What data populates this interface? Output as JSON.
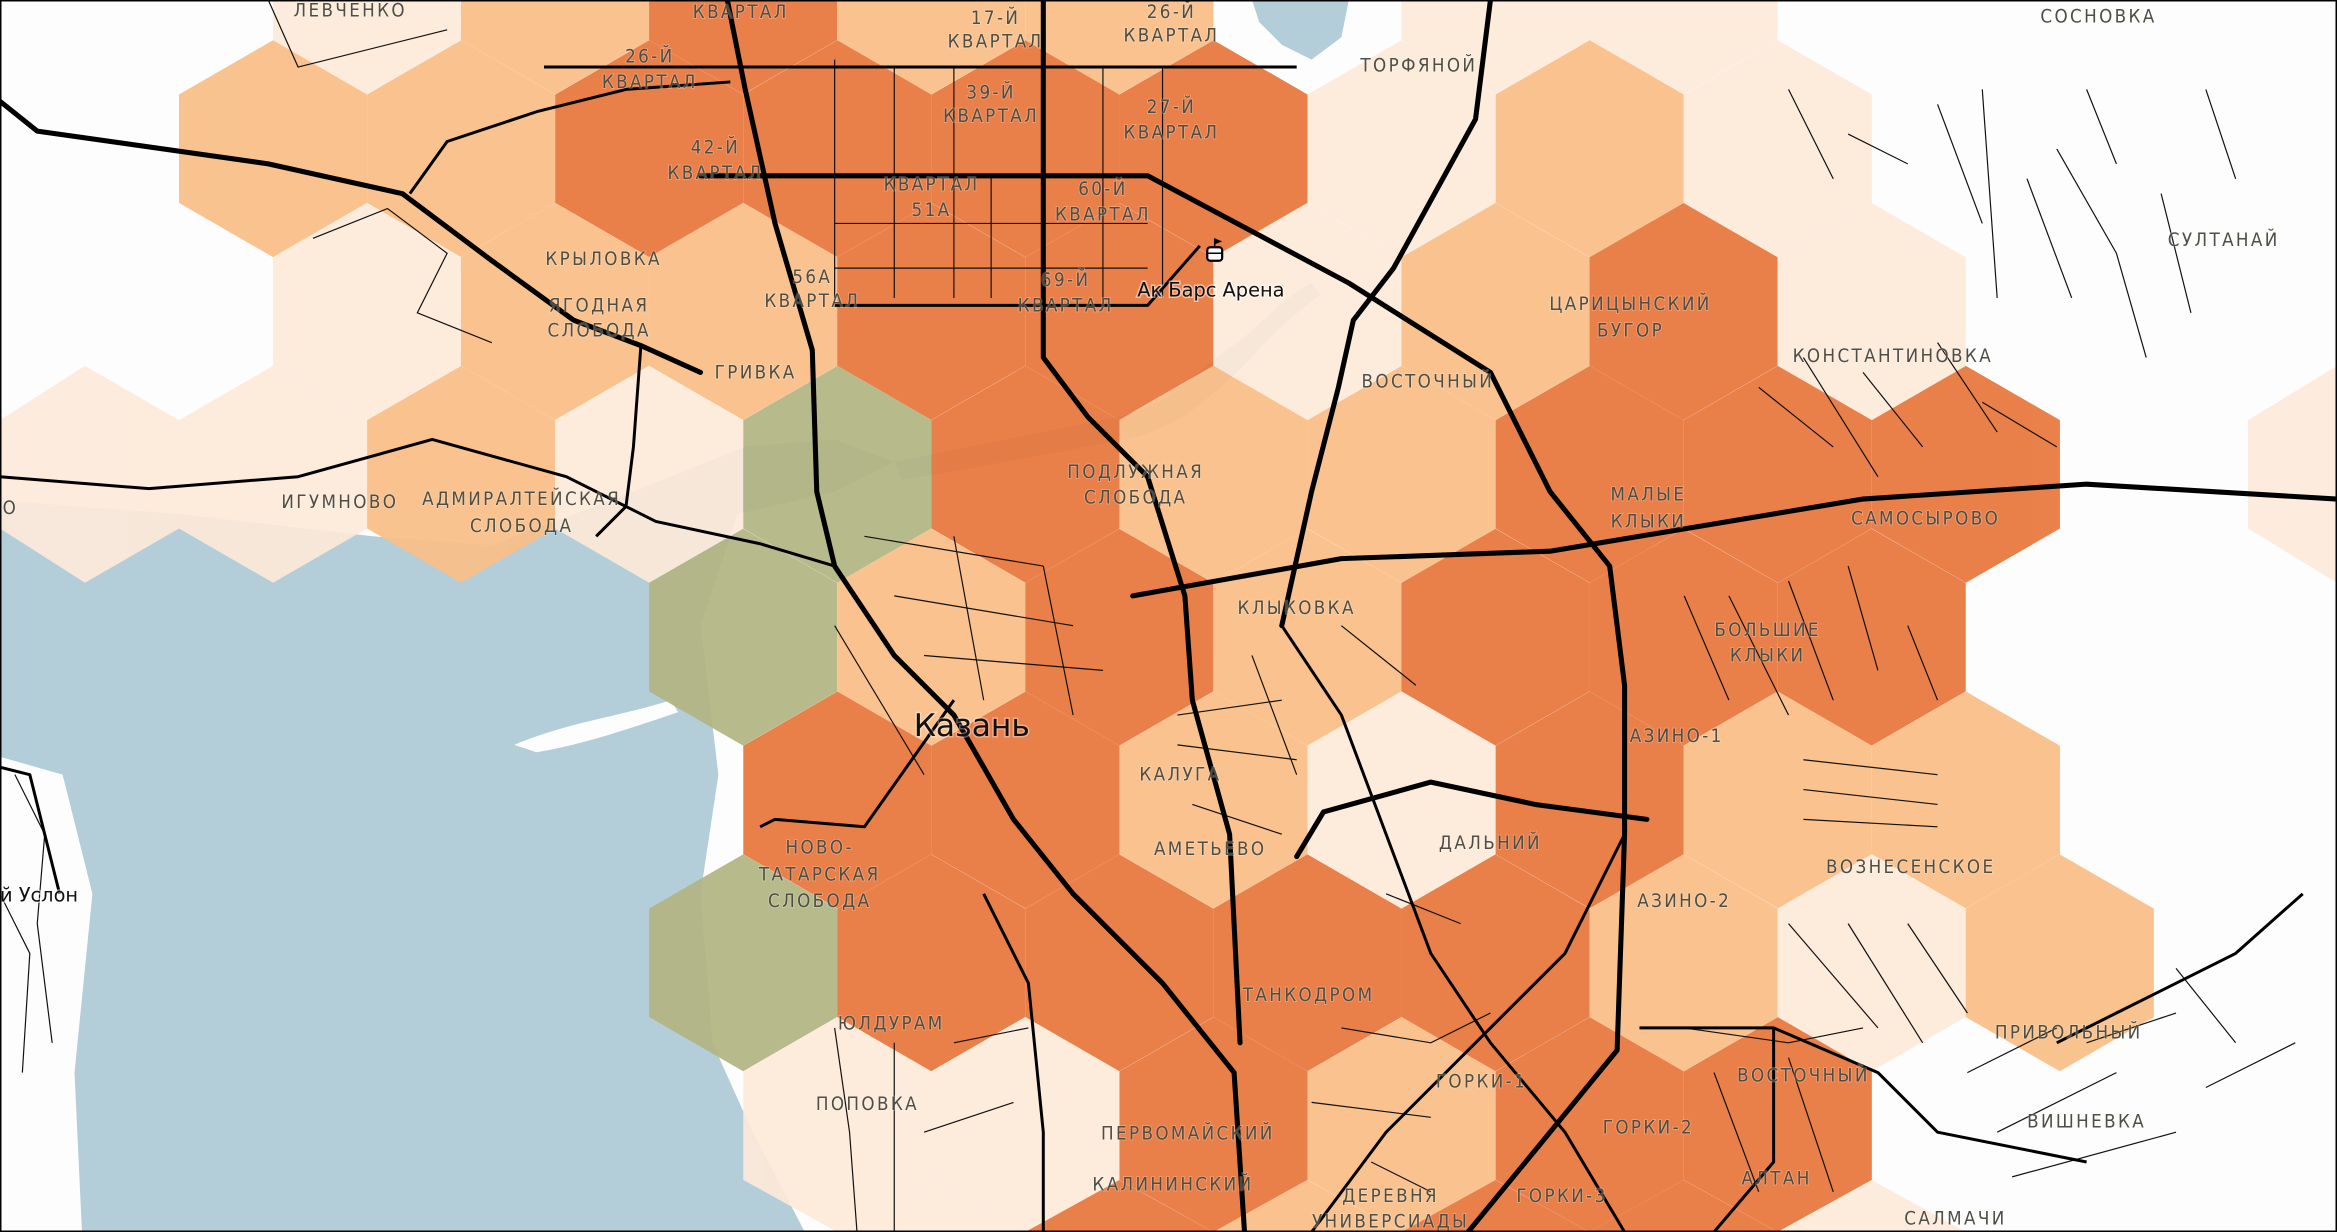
{
  "map": {
    "colors": {
      "land": "#fdfdfd",
      "water": "#b3cdd9",
      "level_1": "#fdeada",
      "level_2": "#f9be86",
      "level_3": "#e8763c",
      "level_g": "#b2b583"
    },
    "hex_levels": [
      [
        "0",
        "1",
        "2",
        "3",
        "2",
        "2",
        "0",
        "1",
        "1",
        "0",
        "0",
        "0"
      ],
      [
        "0",
        "2",
        "2",
        "3",
        "3",
        "3",
        "3",
        "1",
        "2",
        "1",
        "0",
        "0",
        "0"
      ],
      [
        "0",
        "1",
        "2",
        "2",
        "3",
        "3",
        "1",
        "2",
        "3",
        "1",
        "0",
        "0"
      ],
      [
        "1",
        "1",
        "2",
        "1",
        "g",
        "3",
        "2",
        "2",
        "3",
        "3",
        "3",
        "0",
        "1"
      ],
      [
        "0",
        "0",
        "0",
        "g",
        "2",
        "3",
        "2",
        "3",
        "3",
        "3",
        "0",
        "0"
      ],
      [
        "0",
        "0",
        "0",
        "0",
        "3",
        "3",
        "2",
        "1",
        "3",
        "2",
        "2",
        "0",
        "0"
      ],
      [
        "0",
        "0",
        "0",
        "g",
        "3",
        "3",
        "3",
        "3",
        "2",
        "1",
        "2",
        "0"
      ],
      [
        "0",
        "0",
        "0",
        "0",
        "1",
        "1",
        "3",
        "2",
        "3",
        "3",
        "0",
        "0",
        "0"
      ],
      [
        "0",
        "0",
        "0",
        "0",
        "1",
        "3",
        "2",
        "3",
        "3",
        "1",
        "0",
        "0"
      ]
    ],
    "city": "Казань",
    "poi": {
      "ak_bars": "Ак Барс Арена",
      "ak_bars_icon": "stadium-icon"
    },
    "uslon": "й Услон",
    "places": {
      "levchenko": "ЛЕВЧЕНКО",
      "kvartal_top": "КВАРТАЛ",
      "k17_a": "17-Й",
      "k17_b": "КВАРТАЛ",
      "k26e_a": "26-Й",
      "k26e_b": "КВАРТАЛ",
      "sosnovka": "СОСНОВКА",
      "k26w_a": "26-Й",
      "k26w_b": "КВАРТАЛ",
      "k39_a": "39-Й",
      "k39_b": "КВАРТАЛ",
      "k27_a": "27-Й",
      "k27_b": "КВАРТАЛ",
      "torfyanoy": "ТОРФЯНОЙ",
      "k42_a": "42-Й",
      "k42_b": "КВАРТАЛ",
      "k51_a": "КВАРТАЛ",
      "k51_b": "51А",
      "k60_a": "60-Й",
      "k60_b": "КВАРТАЛ",
      "sultanay": "СУЛТАНАЙ",
      "krylovka": "КРЫЛОВКА",
      "yagodnaya_a": "ЯГОДНАЯ",
      "yagodnaya_b": "СЛОБОДА",
      "k56_a": "56А",
      "k56_b": "КВАРТАЛ",
      "k69_a": "69-Й",
      "k69_b": "КВАРТАЛ",
      "tsaritsyno_a": "ЦАРИЦЫНСКИЙ",
      "tsaritsyno_b": "БУГОР",
      "konstantinovka": "КОНСТАНТИНОВКА",
      "grivka": "ГРИВКА",
      "vostochny_n": "ВОСТОЧНЫЙ",
      "o_partial": "О",
      "igumnovo": "ИГУМНОВО",
      "admiralteyskaya_a": "АДМИРАЛТЕЙСКАЯ",
      "admiralteyskaya_b": "СЛОБОДА",
      "podluzhnaya_a": "ПОДЛУЖНАЯ",
      "podluzhnaya_b": "СЛОБОДА",
      "malye_a": "МАЛЫЕ",
      "malye_b": "КЛЫКИ",
      "samosyrovo": "САМОСЫРОВО",
      "klykovka": "КЛЫКОВКА",
      "bolshie_a": "БОЛЬШИЕ",
      "bolshie_b": "КЛЫКИ",
      "azino1": "АЗИНО-1",
      "kaluga": "КАЛУГА",
      "ametyevo": "АМЕТЬЕВО",
      "novotat_a": "НОВО-",
      "novotat_b": "ТАТАРСКАЯ",
      "novotat_c": "СЛОБОДА",
      "dalniy": "ДАЛЬНИЙ",
      "voznesenskoe": "ВОЗНЕСЕНСКОЕ",
      "azino2": "АЗИНО-2",
      "tankodrom": "ТАНКОДРОМ",
      "yuldruam": "ЮЛДУРАМ",
      "privolny": "ПРИВОЛЬНЫЙ",
      "gorki1": "ГОРКИ-1",
      "vostochny_s": "ВОСТОЧНЫЙ",
      "popovka": "ПОПОВКА",
      "gorki2": "ГОРКИ-2",
      "vishnevka": "ВИШНЕВКА",
      "pervomaisky": "ПЕРВОМАЙСКИЙ",
      "altan": "АЛТАН",
      "kalininsky": "КАЛИНИНСКИЙ",
      "universiada_a": "ДЕРЕВНЯ",
      "universiada_b": "УНИВЕРСИАДЫ",
      "gorki3": "ГОРКИ-3",
      "salmachi": "САЛМАЧИ"
    }
  }
}
